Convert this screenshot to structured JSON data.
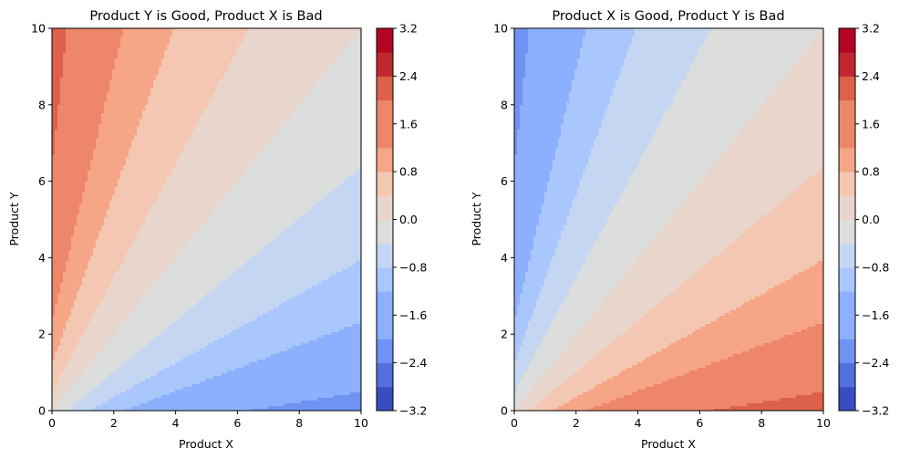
{
  "chart_data": [
    {
      "type": "contour",
      "title": "Product Y is Good, Product X is Bad",
      "xlabel": "Product X",
      "ylabel": "Product Y",
      "xlim": [
        0,
        10
      ],
      "ylim": [
        0,
        10
      ],
      "xticks": [
        "0",
        "2",
        "4",
        "6",
        "8",
        "10"
      ],
      "yticks": [
        "0",
        "2",
        "4",
        "6",
        "8",
        "10"
      ],
      "z_function": "log((y+1)/(x+1))",
      "colormap": "coolwarm",
      "levels": [
        -3.2,
        -2.8,
        -2.4,
        -2.0,
        -1.6,
        -1.2,
        -0.8,
        -0.4,
        0.0,
        0.4,
        0.8,
        1.2,
        1.6,
        2.0,
        2.4,
        2.8,
        3.2
      ],
      "colorbar": {
        "range": [
          -3.2,
          3.2
        ],
        "tick_labels": [
          "−3.2",
          "−2.4",
          "−1.6",
          "−0.8",
          "0.0",
          "0.8",
          "1.6",
          "2.4",
          "3.2"
        ]
      }
    },
    {
      "type": "contour",
      "title": "Product X is Good, Product Y is Bad",
      "xlabel": "Product X",
      "ylabel": "Product Y",
      "xlim": [
        0,
        10
      ],
      "ylim": [
        0,
        10
      ],
      "xticks": [
        "0",
        "2",
        "4",
        "6",
        "8",
        "10"
      ],
      "yticks": [
        "0",
        "2",
        "4",
        "6",
        "8",
        "10"
      ],
      "z_function": "log((x+1)/(y+1))",
      "colormap": "coolwarm",
      "levels": [
        -3.2,
        -2.8,
        -2.4,
        -2.0,
        -1.6,
        -1.2,
        -0.8,
        -0.4,
        0.0,
        0.4,
        0.8,
        1.2,
        1.6,
        2.0,
        2.4,
        2.8,
        3.2
      ],
      "colorbar": {
        "range": [
          -3.2,
          3.2
        ],
        "tick_labels": [
          "−3.2",
          "−2.4",
          "−1.6",
          "−0.8",
          "0.0",
          "0.8",
          "1.6",
          "2.4",
          "3.2"
        ]
      }
    }
  ],
  "band_colors": [
    "#3b4cc0",
    "#5470de",
    "#6f92f3",
    "#8caffe",
    "#aac7fd",
    "#c5d6f2",
    "#dcdddd",
    "#e8d6cc",
    "#f3c7b1",
    "#f6a586",
    "#ee8669",
    "#dd604a",
    "#c0282f",
    "#b40426"
  ]
}
